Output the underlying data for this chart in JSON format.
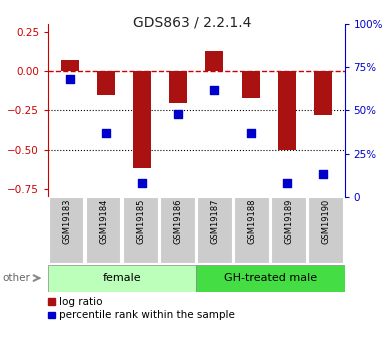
{
  "title": "GDS863 / 2.2.1.4",
  "samples": [
    "GSM19183",
    "GSM19184",
    "GSM19185",
    "GSM19186",
    "GSM19187",
    "GSM19188",
    "GSM19189",
    "GSM19190"
  ],
  "log_ratio": [
    0.07,
    -0.15,
    -0.62,
    -0.2,
    0.13,
    -0.17,
    -0.5,
    -0.28
  ],
  "percentile_rank": [
    0.68,
    0.37,
    0.08,
    0.48,
    0.62,
    0.37,
    0.08,
    0.13
  ],
  "bar_color": "#aa1111",
  "dot_color": "#0000cc",
  "ylim_left": [
    -0.8,
    0.3
  ],
  "ylim_right": [
    0.0,
    1.0
  ],
  "yticks_left": [
    0.25,
    0.0,
    -0.25,
    -0.5,
    -0.75
  ],
  "yticks_right_vals": [
    1.0,
    0.75,
    0.5,
    0.25,
    0.0
  ],
  "yticks_right_labels": [
    "100%",
    "75%",
    "50%",
    "25%",
    "0"
  ],
  "hlines_dotted": [
    -0.25,
    -0.5
  ],
  "zero_line_color": "#cc0000",
  "groups": [
    {
      "label": "female",
      "start": 0,
      "end": 3,
      "color": "#bbffbb"
    },
    {
      "label": "GH-treated male",
      "start": 4,
      "end": 7,
      "color": "#44dd44"
    }
  ],
  "legend_log_ratio": "log ratio",
  "legend_percentile": "percentile rank within the sample",
  "other_label": "other",
  "title_color": "#222222",
  "left_axis_color": "#cc0000",
  "right_axis_color": "#0000cc",
  "bar_width": 0.5,
  "dot_size": 40,
  "sample_box_color": "#cccccc",
  "outer_box_color": "#999999"
}
